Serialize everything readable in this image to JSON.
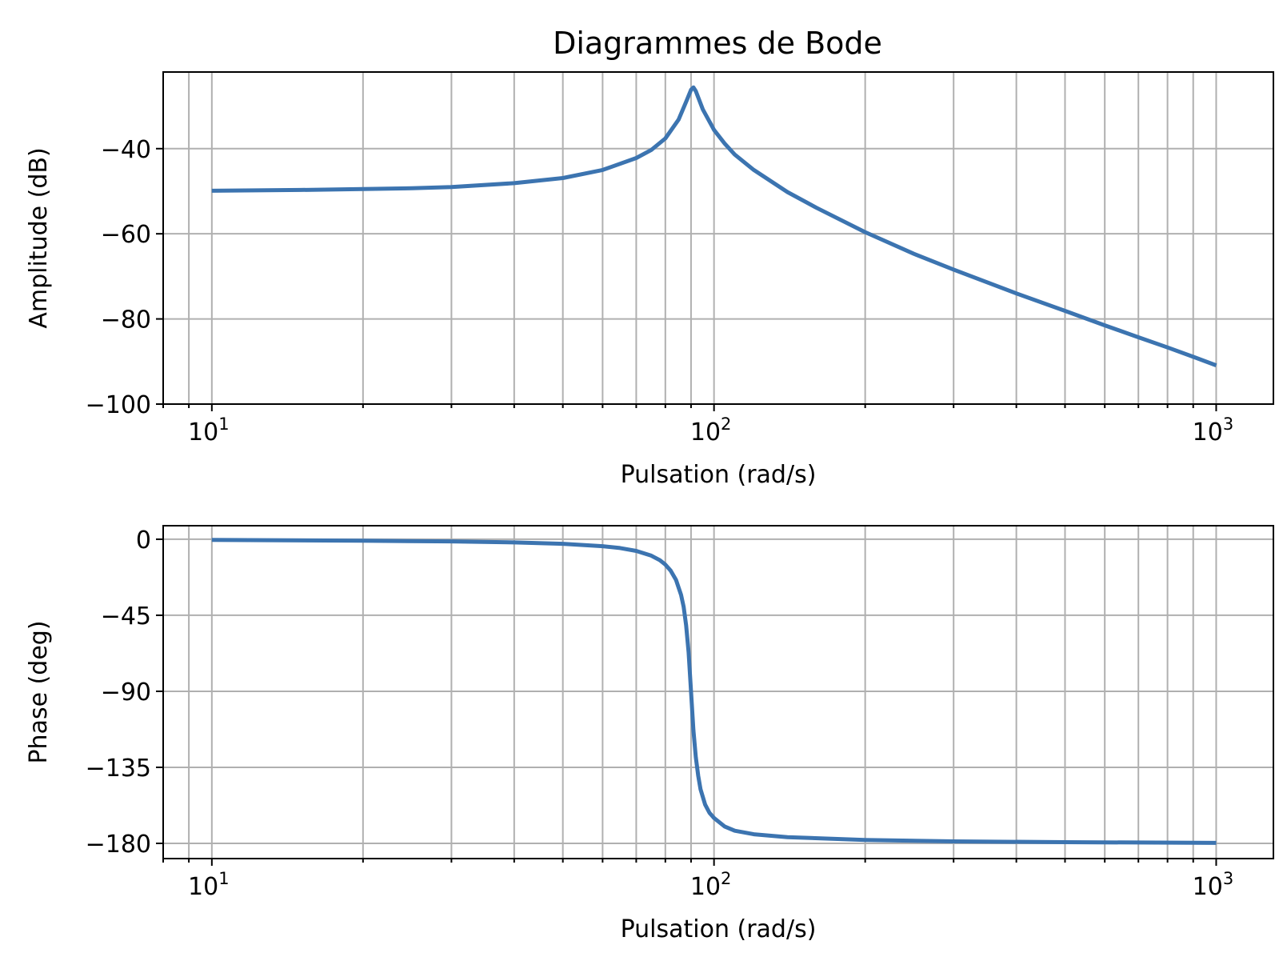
{
  "figure": {
    "title": "Diagrammes de Bode",
    "line_color": "#3c74b0",
    "grid_color": "#b0b0b0"
  },
  "chart_data": [
    {
      "type": "line",
      "id": "amplitude",
      "title": "Diagrammes de Bode",
      "xlabel": "Pulsation (rad/s)",
      "ylabel": "Amplitude (dB)",
      "x_scale": "log",
      "xlim": [
        8,
        1300
      ],
      "ylim": [
        -100,
        -22
      ],
      "x_ticks": [
        10,
        100,
        1000
      ],
      "x_tick_labels": [
        {
          "base": "10",
          "exp": "1"
        },
        {
          "base": "10",
          "exp": "2"
        },
        {
          "base": "10",
          "exp": "3"
        }
      ],
      "y_ticks": [
        -40,
        -60,
        -80,
        -100
      ],
      "y_tick_labels": [
        "−40",
        "−60",
        "−80",
        "−100"
      ],
      "grid": true,
      "series": [
        {
          "x": [
            10,
            15,
            20,
            25,
            30,
            40,
            50,
            60,
            70,
            75,
            80,
            85,
            88,
            90,
            91,
            92,
            95,
            100,
            105,
            110,
            120,
            140,
            160,
            200,
            250,
            300,
            400,
            500,
            600,
            700,
            800,
            900,
            1000
          ],
          "y": [
            -49.9,
            -49.7,
            -49.5,
            -49.3,
            -49.0,
            -48.1,
            -46.9,
            -45.0,
            -42.2,
            -40.3,
            -37.6,
            -33.2,
            -29.0,
            -26.2,
            -25.6,
            -26.5,
            -30.8,
            -35.6,
            -38.8,
            -41.4,
            -45.0,
            -50.2,
            -53.9,
            -59.6,
            -64.7,
            -68.4,
            -74.0,
            -78.1,
            -81.5,
            -84.3,
            -86.7,
            -88.9,
            -90.9
          ]
        }
      ]
    },
    {
      "type": "line",
      "id": "phase",
      "xlabel": "Pulsation (rad/s)",
      "ylabel": "Phase (deg)",
      "x_scale": "log",
      "xlim": [
        8,
        1300
      ],
      "ylim": [
        -189,
        8
      ],
      "x_ticks": [
        10,
        100,
        1000
      ],
      "x_tick_labels": [
        {
          "base": "10",
          "exp": "1"
        },
        {
          "base": "10",
          "exp": "2"
        },
        {
          "base": "10",
          "exp": "3"
        }
      ],
      "y_ticks": [
        0,
        -45,
        -90,
        -135,
        -180
      ],
      "y_tick_labels": [
        "0",
        "−45",
        "−90",
        "−135",
        "−180"
      ],
      "grid": true,
      "series": [
        {
          "x": [
            10,
            20,
            30,
            40,
            50,
            60,
            65,
            70,
            75,
            78,
            80,
            82,
            84,
            86,
            87,
            88,
            89,
            90,
            91,
            92,
            93,
            94,
            96,
            98,
            100,
            105,
            110,
            120,
            140,
            200,
            300,
            500,
            1000
          ],
          "y": [
            -0.4,
            -0.9,
            -1.3,
            -1.9,
            -2.7,
            -4.1,
            -5.2,
            -6.9,
            -9.7,
            -12.4,
            -15.0,
            -18.6,
            -24.0,
            -33.0,
            -40.0,
            -51.0,
            -67.0,
            -90.0,
            -113.0,
            -129.0,
            -140.0,
            -148.0,
            -157.0,
            -162.0,
            -165.0,
            -170.0,
            -172.5,
            -174.6,
            -176.3,
            -178.0,
            -178.8,
            -179.3,
            -179.7
          ]
        }
      ]
    }
  ]
}
